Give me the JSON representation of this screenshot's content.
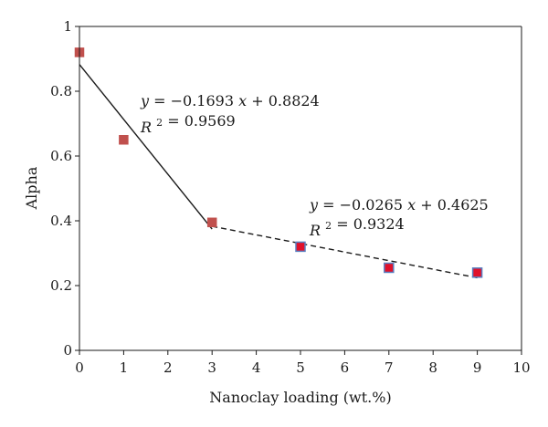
{
  "chart_data": {
    "type": "scatter",
    "title": "",
    "xlabel": "Nanoclay loading (wt.%)",
    "ylabel": "Alpha",
    "xlim": [
      0,
      10
    ],
    "ylim": [
      0,
      1
    ],
    "xticks": [
      "0",
      "1",
      "2",
      "3",
      "4",
      "5",
      "6",
      "7",
      "8",
      "9",
      "10"
    ],
    "yticks": [
      "0",
      "0.2",
      "0.4",
      "0.6",
      "0.8",
      "1"
    ],
    "grid": false,
    "legend": "none",
    "series": [
      {
        "marker_color": "#c0504d",
        "points": [
          {
            "x": 0,
            "y": 0.92
          },
          {
            "x": 1,
            "y": 0.65
          },
          {
            "x": 3,
            "y": 0.395
          }
        ]
      },
      {
        "marker_color": "#e0112b",
        "marker_edge_color": "#5b7fc0",
        "points": [
          {
            "x": 5,
            "y": 0.32
          },
          {
            "x": 7,
            "y": 0.255
          },
          {
            "x": 9,
            "y": 0.24
          }
        ]
      }
    ],
    "trendlines": [
      {
        "style": "solid",
        "x_range": [
          0,
          3
        ],
        "slope": -0.1693,
        "intercept": 0.8824,
        "equation": {
          "y": "y",
          "eq": "= −0.1693",
          "x": "x",
          "rest": "+ 0.8824"
        },
        "r2": {
          "r": "R",
          "sup": "2",
          "val": "= 0.9569"
        }
      },
      {
        "style": "dashed",
        "x_range": [
          3,
          9
        ],
        "slope": -0.0265,
        "intercept": 0.4625,
        "equation": {
          "y": "y",
          "eq": "= −0.0265",
          "x": "x",
          "rest": "+ 0.4625"
        },
        "r2": {
          "r": "R",
          "sup": "2",
          "val": "= 0.9324"
        }
      }
    ]
  }
}
